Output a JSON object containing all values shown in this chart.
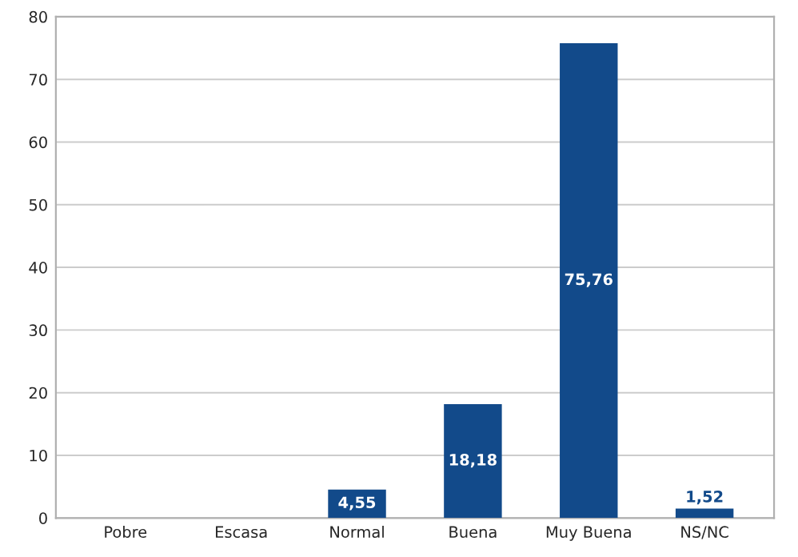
{
  "chart_data": {
    "type": "bar",
    "categories": [
      "Pobre",
      "Escasa",
      "Normal",
      "Buena",
      "Muy Buena",
      "NS/NC"
    ],
    "values": [
      0,
      0,
      4.55,
      18.18,
      75.76,
      1.52
    ],
    "value_labels": [
      null,
      null,
      "4,55",
      "18,18",
      "75,76",
      "1,52"
    ],
    "color": "#124a8a",
    "ylim": [
      0,
      80
    ],
    "yticks": [
      0,
      10,
      20,
      30,
      40,
      50,
      60,
      70,
      80
    ],
    "grid": "y",
    "legend": false
  }
}
